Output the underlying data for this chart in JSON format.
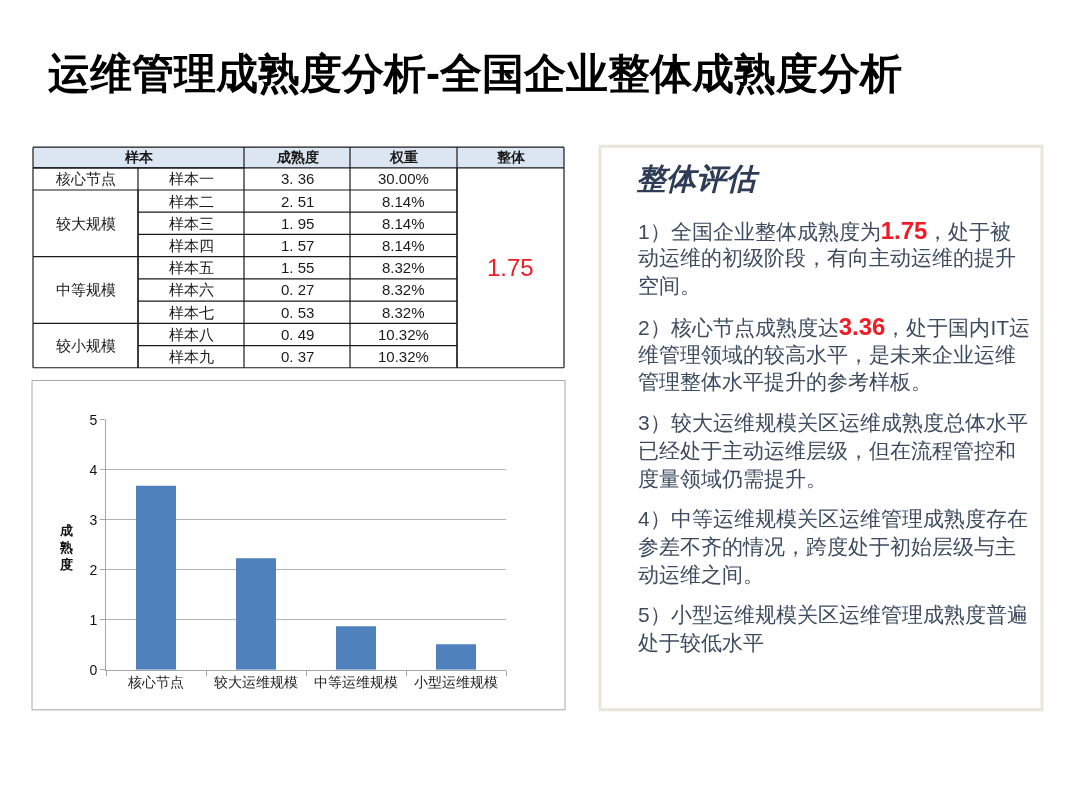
{
  "chart_data": [
    {
      "type": "other",
      "title": "运维管理成熟度分析-全国企业整体成熟度分析",
      "annotations": [
        "样本",
        "成熟度",
        "权重",
        "整体",
        "核心节点",
        "样本一",
        "3. 36",
        "30.00%",
        "1.75",
        "较大规模",
        "样本二",
        "2. 51",
        "8.14%",
        "样本三",
        "1. 95",
        "8.14%",
        "样本四",
        "1. 57",
        "8.14%",
        "中等规模",
        "样本五",
        "1. 55",
        "8.32%",
        "样本六",
        "0. 27",
        "8.32%",
        "样本七",
        "0. 53",
        "8.32%",
        "较小规模",
        "样本八",
        "0. 49",
        "10.32%",
        "样本九",
        "0. 37",
        "10.32%"
      ]
    },
    {
      "type": "bar",
      "categories": [
        "核心节点",
        "较大运维规模",
        "中等运维规模",
        "小型运维规模"
      ],
      "values": [
        3.68,
        2.23,
        0.87,
        0.51
      ],
      "color": "#4f81bd",
      "ylabel": "成熟度",
      "ylim": [
        0,
        5
      ],
      "yticks": [
        0,
        1,
        2,
        3,
        4,
        5
      ],
      "grid": "y"
    },
    {
      "type": "other",
      "title": "整体评估",
      "annotations": [
        "1）全国企业整体成熟度为",
        "1.75",
        "，处于被动运维的初级阶段，有向主动运维的提升空间。",
        "2）核心节点成熟度达",
        "3.36",
        "，处于国内IT运维管理领域的较高水平，是未来企业运维管理整体水平提升的参考样板。",
        "3）较大运维规模关区运维成熟度总体水平已经处于主动运维层级，但在流程管控和度量领域仍需提升。",
        "4）中等运维规模关区运维管理成熟度存在参差不齐的情况，跨度处于初始层级与主动运维之间。",
        "5）小型运维规模关区运维管理成熟度普遍处于较低水平"
      ]
    }
  ]
}
